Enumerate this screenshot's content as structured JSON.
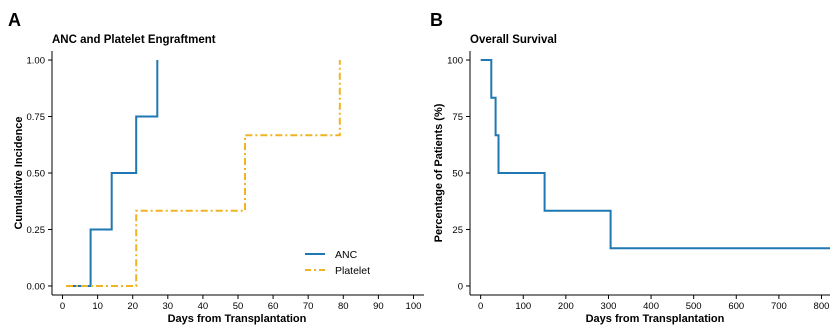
{
  "colors": {
    "anc": "#1f77b4",
    "platelet": "#f0b323"
  },
  "chart_data": [
    {
      "panel": "A",
      "type": "line",
      "step": true,
      "title": "ANC and Platelet Engraftment",
      "xlabel": "Days from Transplantation",
      "ylabel": "Cumulative Incidence",
      "xlim": [
        -3,
        103
      ],
      "ylim": [
        -0.04,
        1.04
      ],
      "xticks": [
        0,
        10,
        20,
        30,
        40,
        50,
        60,
        70,
        80,
        90,
        100
      ],
      "yticks": [
        0,
        0.25,
        0.5,
        0.75,
        1.0
      ],
      "ytick_labels": [
        "0.00",
        "0.25",
        "0.50",
        "0.75",
        "1.00"
      ],
      "grid": false,
      "legend": "bottom-right",
      "series": [
        {
          "name": "ANC",
          "style": "solid",
          "color": "#1f77b4",
          "x": [
            1,
            8,
            8,
            14,
            14,
            21,
            21,
            27,
            27
          ],
          "y": [
            0,
            0,
            0.25,
            0.25,
            0.5,
            0.5,
            0.75,
            0.75,
            1.0
          ]
        },
        {
          "name": "Platelet",
          "style": "dashdot",
          "color": "#f0b323",
          "x": [
            1,
            21,
            21,
            52,
            52,
            79,
            79
          ],
          "y": [
            0,
            0,
            0.333,
            0.333,
            0.667,
            0.667,
            1.0
          ]
        }
      ]
    },
    {
      "panel": "B",
      "type": "line",
      "step": true,
      "title": "Overall Survival",
      "xlabel": "Days from Transplantation",
      "ylabel": "Percentage of Patients (%)",
      "xlim": [
        -25,
        820
      ],
      "ylim": [
        -4,
        104
      ],
      "xticks": [
        0,
        100,
        200,
        300,
        400,
        500,
        600,
        700,
        800
      ],
      "yticks": [
        0,
        25,
        50,
        75,
        100
      ],
      "ytick_labels": [
        "0",
        "25",
        "50",
        "75",
        "100"
      ],
      "grid": false,
      "legend": "none",
      "series": [
        {
          "name": "",
          "style": "solid",
          "color": "#1f77b4",
          "x": [
            0,
            25,
            25,
            35,
            35,
            42,
            42,
            150,
            150,
            305,
            305,
            820
          ],
          "y": [
            100,
            100,
            83.3,
            83.3,
            66.7,
            66.7,
            50,
            50,
            33.3,
            33.3,
            16.7,
            16.7
          ]
        }
      ]
    }
  ]
}
